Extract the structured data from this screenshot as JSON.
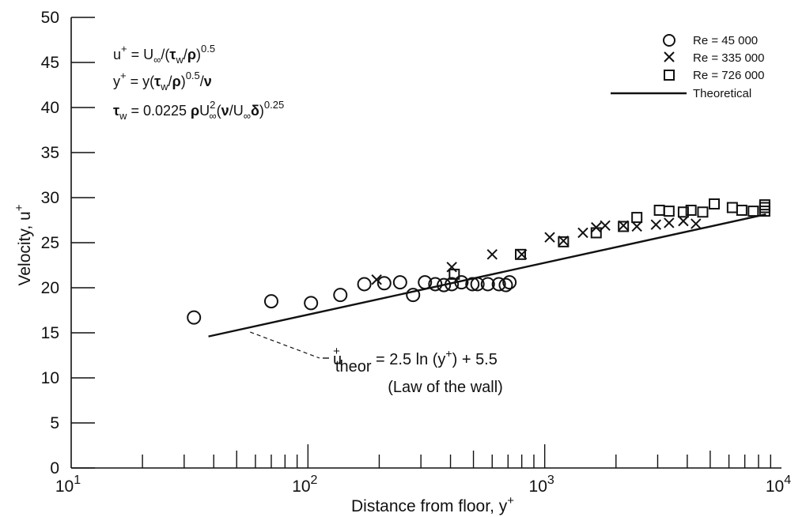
{
  "chart_data": {
    "type": "scatter",
    "xscale": "log",
    "xlim": [
      10,
      10000
    ],
    "ylim": [
      0,
      50
    ],
    "yticks": [
      0,
      5,
      10,
      15,
      20,
      25,
      30,
      35,
      40,
      45,
      50
    ],
    "xtick_labels": [
      {
        "value": 10,
        "base": "10",
        "exp": "1"
      },
      {
        "value": 100,
        "base": "10",
        "exp": "2"
      },
      {
        "value": 1000,
        "base": "10",
        "exp": "3"
      },
      {
        "value": 10000,
        "base": "10",
        "exp": "4"
      }
    ],
    "xlabel": {
      "text": "Distance from floor, y",
      "sup": "+"
    },
    "ylabel": {
      "text": "Velocity, u",
      "sup": "+"
    },
    "grid": false,
    "legend_placement": "top-right",
    "formulas": {
      "line1": {
        "a": "u",
        "a_sup": "+",
        "b": " = U",
        "b_sub": "∞",
        "c": "/(",
        "tau": "τ",
        "tau_sub": "w",
        "d": "/",
        "rho": "ρ",
        "e": ")",
        "e_sup": "0.5"
      },
      "line2": {
        "a": "y",
        "a_sup": "+",
        "b": " = y(",
        "tau": "τ",
        "tau_sub": "w",
        "d": "/",
        "rho": "ρ",
        "e": ")",
        "e_sup": "0.5",
        "f": "/",
        "nu": "ν"
      },
      "line3": {
        "tau": "τ",
        "tau_sub": "w",
        "b": " = 0.0225 ",
        "rho": "ρ",
        "c": "U",
        "c_sup": "2",
        "c_sub": "∞",
        "d": "(",
        "nu": "ν",
        "e": "/U",
        "e_sub": "∞",
        "delta": "δ",
        "f": ")",
        "f_sup": "0.25"
      }
    },
    "series": [
      {
        "name": "Re = 45 000",
        "marker": "circle",
        "points": [
          [
            33,
            16.7
          ],
          [
            70,
            18.5
          ],
          [
            103,
            18.3
          ],
          [
            137,
            19.2
          ],
          [
            173,
            20.4
          ],
          [
            210,
            20.5
          ],
          [
            245,
            20.6
          ],
          [
            278,
            19.2
          ],
          [
            312,
            20.6
          ],
          [
            345,
            20.4
          ],
          [
            375,
            20.3
          ],
          [
            405,
            20.4
          ],
          [
            445,
            20.6
          ],
          [
            495,
            20.4
          ],
          [
            520,
            20.4
          ],
          [
            575,
            20.4
          ],
          [
            640,
            20.4
          ],
          [
            685,
            20.3
          ],
          [
            710,
            20.6
          ]
        ]
      },
      {
        "name": "Re = 335 000",
        "marker": "x",
        "points": [
          [
            195,
            20.9
          ],
          [
            405,
            22.3
          ],
          [
            600,
            23.7
          ],
          [
            800,
            23.7
          ],
          [
            1050,
            25.6
          ],
          [
            1200,
            25.2
          ],
          [
            1450,
            26.1
          ],
          [
            1650,
            26.7
          ],
          [
            1800,
            26.9
          ],
          [
            2150,
            26.9
          ],
          [
            2450,
            26.8
          ],
          [
            2950,
            27.0
          ],
          [
            3350,
            27.2
          ],
          [
            3850,
            27.4
          ],
          [
            4350,
            27.1
          ]
        ]
      },
      {
        "name": "Re = 726 000",
        "marker": "square",
        "points": [
          [
            415,
            21.5
          ],
          [
            790,
            23.7
          ],
          [
            1200,
            25.1
          ],
          [
            1650,
            26.1
          ],
          [
            2150,
            26.8
          ],
          [
            2450,
            27.8
          ],
          [
            3050,
            28.6
          ],
          [
            3350,
            28.5
          ],
          [
            3850,
            28.4
          ],
          [
            4150,
            28.6
          ],
          [
            4650,
            28.4
          ],
          [
            5200,
            29.3
          ],
          [
            6200,
            28.9
          ],
          [
            6800,
            28.6
          ],
          [
            7600,
            28.5
          ],
          [
            8500,
            28.5
          ],
          [
            8500,
            29.2
          ],
          [
            8500,
            28.9
          ]
        ]
      },
      {
        "name": "Theoretical",
        "marker": "line",
        "line": {
          "x_start": 38,
          "x_end": 8600,
          "slope": 2.5,
          "intercept": 5.5
        }
      }
    ],
    "annotation": {
      "label": {
        "a": "u",
        "a_sup": "+",
        "a_sub": "theor",
        "b": " = 2.5 ln (y",
        "b_sup": "+",
        "c": ") + 5.5"
      },
      "note": "(Law of the wall)",
      "points_to_x": 57
    }
  }
}
